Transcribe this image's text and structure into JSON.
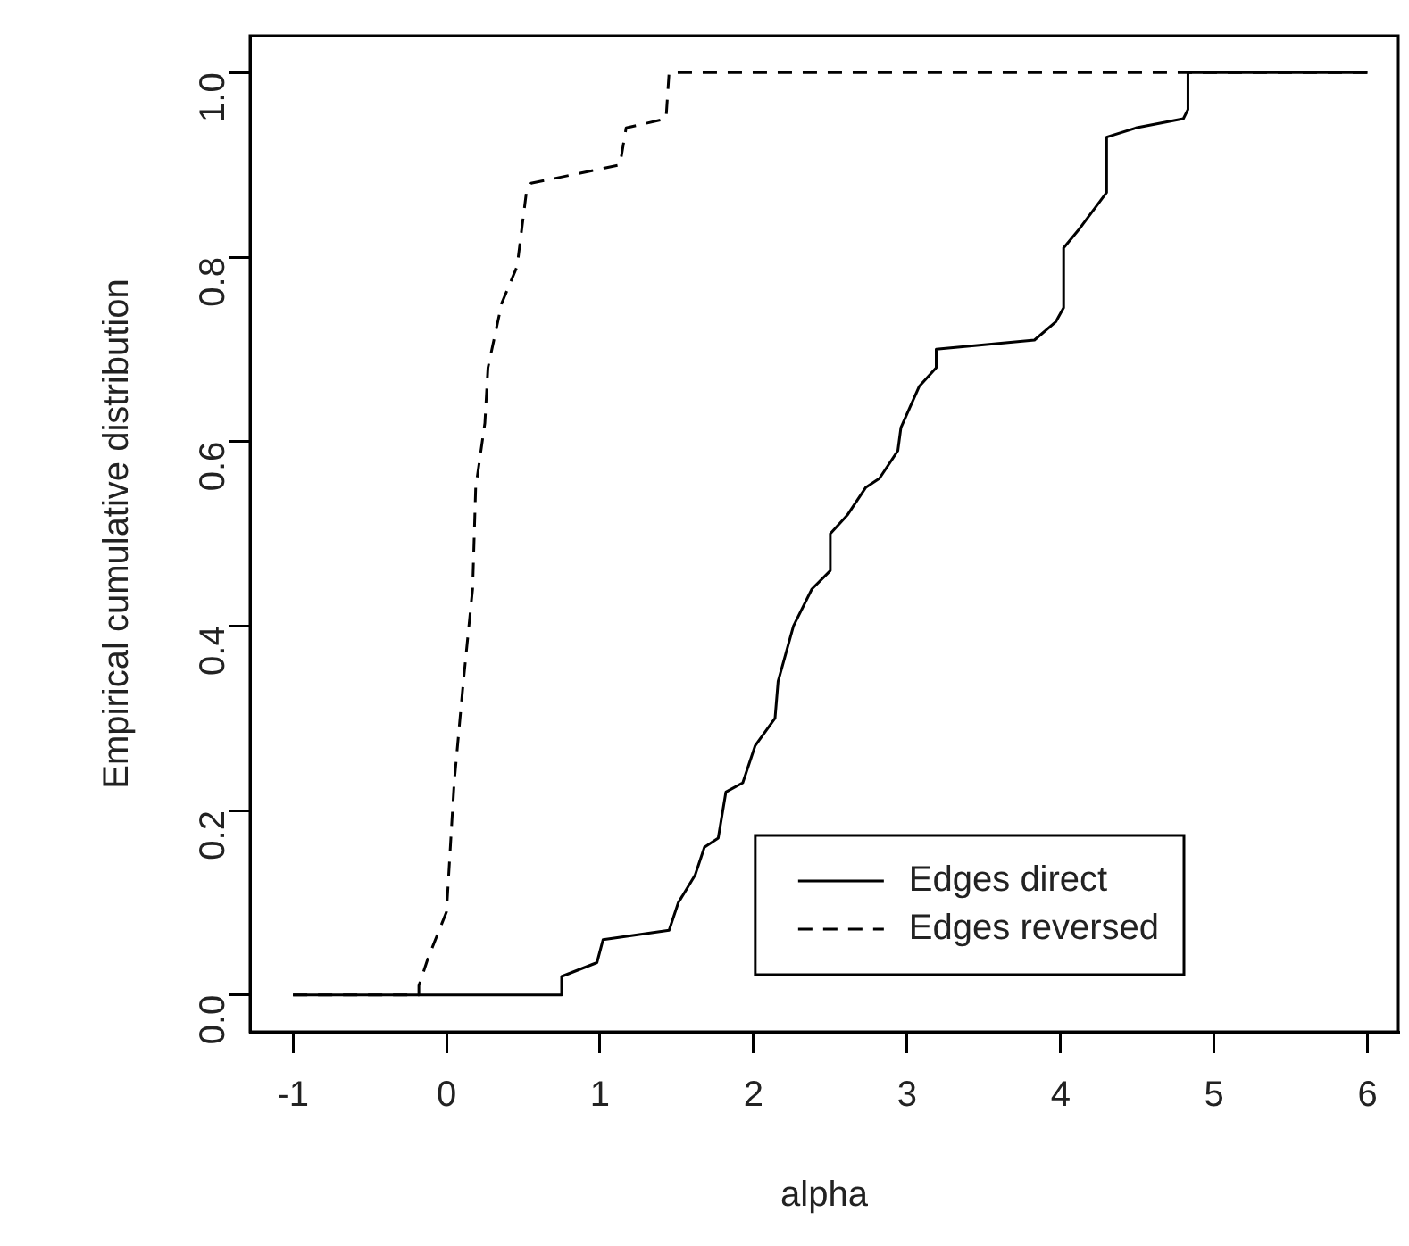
{
  "chart_data": {
    "type": "line",
    "xlabel": "alpha",
    "ylabel": "Empirical cumulative distribution",
    "xlim": [
      -1.28,
      6.2
    ],
    "ylim": [
      -0.04,
      1.04
    ],
    "xticks": [
      -1,
      0,
      1,
      2,
      3,
      4,
      5,
      6
    ],
    "yticks": [
      {
        "value": 0,
        "label": "0.0"
      },
      {
        "value": 0.2,
        "label": "0.2"
      },
      {
        "value": 0.4,
        "label": "0.4"
      },
      {
        "value": 0.6,
        "label": "0.6"
      },
      {
        "value": 0.8,
        "label": "0.8"
      },
      {
        "value": 1,
        "label": "1.0"
      }
    ],
    "grid": false,
    "legend": "bottom right",
    "marker": "none",
    "series": [
      {
        "name": "Edges direct",
        "color": "#000000",
        "line_style": "solid",
        "x": [
          -1,
          0.75,
          0.75,
          0.98,
          1.02,
          1.45,
          1.51,
          1.62,
          1.68,
          1.77,
          1.82,
          1.93,
          2.01,
          2.14,
          2.16,
          2.26,
          2.38,
          2.5,
          2.5,
          2.61,
          2.73,
          2.82,
          2.94,
          2.96,
          3.08,
          3.19,
          3.19,
          3.83,
          3.97,
          4.02,
          4.02,
          4.12,
          4.3,
          4.3,
          4.49,
          4.8,
          4.83,
          4.83,
          6
        ],
        "values": [
          0,
          0,
          0.02,
          0.035,
          0.06,
          0.07,
          0.1,
          0.13,
          0.16,
          0.17,
          0.22,
          0.23,
          0.27,
          0.3,
          0.34,
          0.4,
          0.44,
          0.46,
          0.5,
          0.52,
          0.55,
          0.56,
          0.59,
          0.615,
          0.66,
          0.68,
          0.7,
          0.71,
          0.73,
          0.745,
          0.81,
          0.83,
          0.87,
          0.93,
          0.94,
          0.95,
          0.96,
          1,
          1
        ]
      },
      {
        "name": "Edges reversed",
        "color": "#000000",
        "line_style": "dashed",
        "x": [
          -1,
          -0.18,
          -0.18,
          -0.12,
          0,
          0.05,
          0.11,
          0.17,
          0.19,
          0.25,
          0.27,
          0.36,
          0.46,
          0.52,
          0.55,
          1.13,
          1.17,
          1.43,
          1.45,
          6
        ],
        "values": [
          0,
          0,
          0.01,
          0.04,
          0.09,
          0.23,
          0.34,
          0.44,
          0.55,
          0.62,
          0.68,
          0.75,
          0.79,
          0.87,
          0.88,
          0.9,
          0.94,
          0.95,
          1,
          1
        ]
      }
    ]
  }
}
